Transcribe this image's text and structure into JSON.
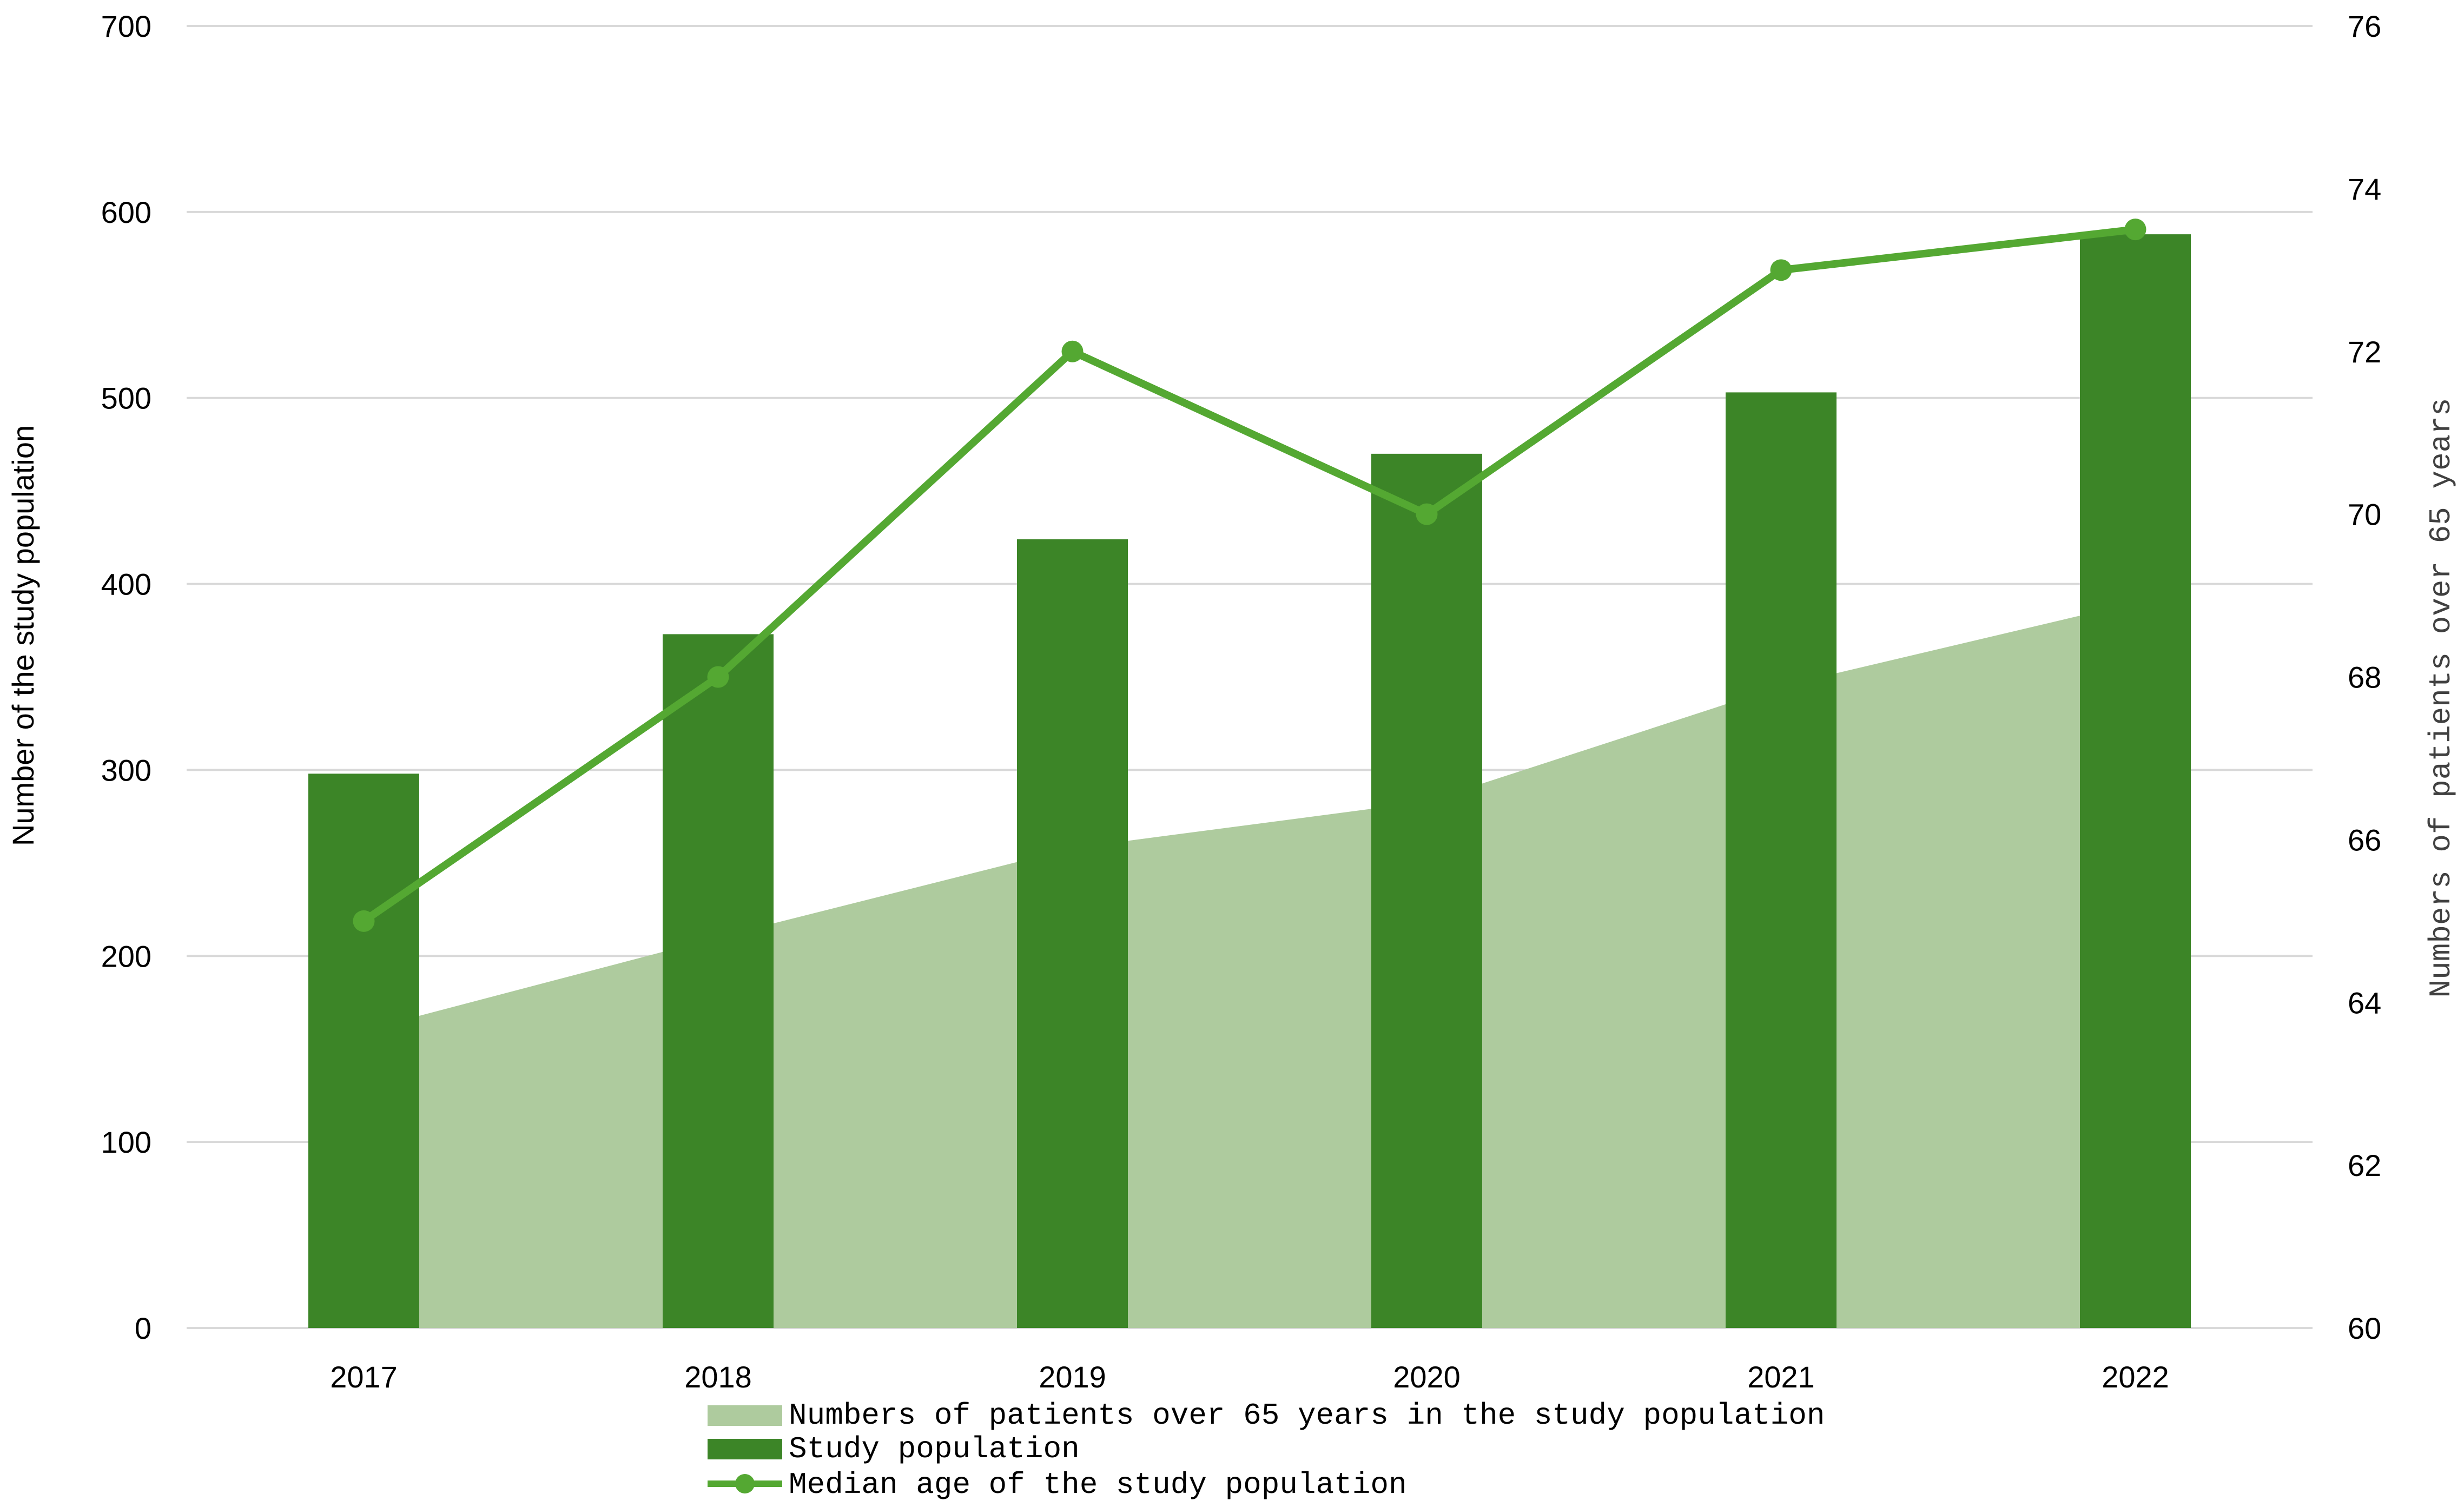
{
  "chart_data": {
    "type": "bar",
    "categories": [
      "2017",
      "2018",
      "2019",
      "2020",
      "2021",
      "2022"
    ],
    "series": [
      {
        "name": "Numbers of patients over 65 years in the study population",
        "type": "area",
        "axis": "left",
        "values": [
          160,
          210,
          258,
          283,
          345,
          390
        ]
      },
      {
        "name": "Study population",
        "type": "bar",
        "axis": "left",
        "values": [
          298,
          373,
          424,
          470,
          503,
          588
        ]
      },
      {
        "name": "Median age of the study population",
        "type": "line",
        "axis": "right",
        "values": [
          65,
          68,
          72,
          70,
          73,
          73.5
        ]
      }
    ],
    "ylabel": "Number of the study population",
    "y2label": "Numbers of patients over 65 years",
    "ylim": [
      0,
      700
    ],
    "y2lim": [
      60,
      76
    ],
    "yticks": [
      "0",
      "100",
      "200",
      "300",
      "400",
      "500",
      "600",
      "700"
    ],
    "y2ticks": [
      "60",
      "62",
      "64",
      "66",
      "68",
      "70",
      "72",
      "74",
      "76"
    ],
    "grid": true,
    "legend": "bottom",
    "colors": {
      "area": "#aecb9e",
      "bar": "#3c8527",
      "line": "#54a832",
      "grid": "#d9d9d9",
      "text": "#000000",
      "y2label": "#404040"
    }
  }
}
